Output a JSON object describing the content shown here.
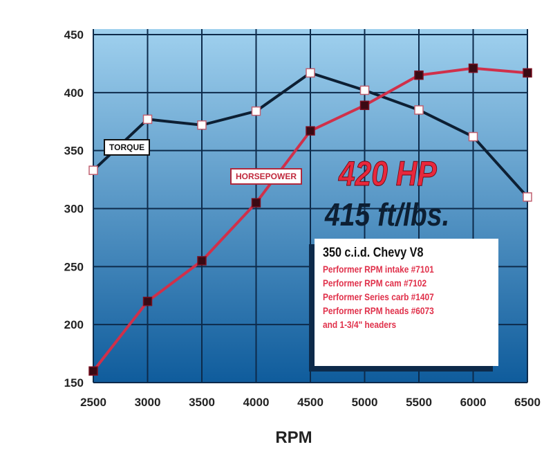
{
  "chart_data": {
    "type": "line",
    "xlabel": "RPM",
    "ylabel": "",
    "x": [
      2500,
      3000,
      3500,
      4000,
      4500,
      5000,
      5500,
      6000,
      6500
    ],
    "xlim": [
      2500,
      6500
    ],
    "ylim": [
      150,
      450
    ],
    "yticks": [
      150,
      200,
      250,
      300,
      350,
      400,
      450
    ],
    "xticks": [
      2500,
      3000,
      3500,
      4000,
      4500,
      5000,
      5500,
      6000,
      6500
    ],
    "grid": true,
    "series": [
      {
        "name": "TORQUE",
        "color": "#0d1f33",
        "marker": "open-square",
        "values": [
          333,
          377,
          372,
          384,
          417,
          402,
          385,
          362,
          310
        ]
      },
      {
        "name": "HORSEPOWER",
        "color": "#d0304a",
        "marker": "filled-square",
        "values": [
          160,
          220,
          255,
          305,
          367,
          389,
          415,
          421,
          417
        ]
      }
    ],
    "annotations": {
      "hp_headline": "420 HP",
      "torque_headline": "415 ft/lbs.",
      "spec_title": "350 c.i.d. Chevy V8",
      "spec_lines": [
        "Performer RPM intake #7101",
        "Performer RPM cam #7102",
        "Performer Series carb #1407",
        "Performer RPM heads #6073",
        "and 1-3/4\" headers"
      ]
    },
    "colors": {
      "background_top": "#9fd0ee",
      "background_bottom": "#0f5c9c",
      "grid": "#0d2a4a"
    }
  }
}
